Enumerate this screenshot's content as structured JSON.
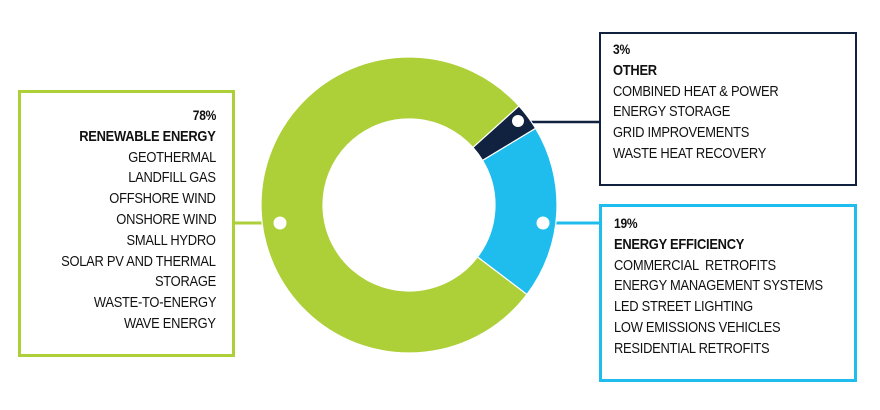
{
  "chart_data": {
    "type": "pie",
    "variant": "donut",
    "title": "",
    "categories": [
      "Renewable Energy",
      "Energy Efficiency",
      "Other"
    ],
    "values": [
      78,
      19,
      3
    ],
    "unit": "%",
    "colors": {
      "Renewable Energy": "#ADCF37",
      "Energy Efficiency": "#1FBCEE",
      "Other": "#10223F"
    },
    "segments": [
      {
        "label": "RENEWABLE ENERGY",
        "percent_label": "78%",
        "value": 78,
        "color": "#ADCF37",
        "items": [
          "GEOTHERMAL",
          "LANDFILL GAS",
          "OFFSHORE WIND",
          "ONSHORE WIND",
          "SMALL HYDRO",
          "SOLAR PV AND THERMAL",
          "STORAGE",
          "WASTE-TO-ENERGY",
          "WAVE ENERGY"
        ]
      },
      {
        "label": "ENERGY EFFICIENCY",
        "percent_label": "19%",
        "value": 19,
        "color": "#1FBCEE",
        "items": [
          "COMMERCIAL  RETROFITS",
          "ENERGY MANAGEMENT SYSTEMS",
          "LED STREET LIGHTING",
          "LOW EMISSIONS VEHICLES",
          "RESIDENTIAL RETROFITS"
        ]
      },
      {
        "label": "OTHER",
        "percent_label": "3%",
        "value": 3,
        "color": "#10223F",
        "items": [
          "COMBINED HEAT & POWER",
          "ENERGY STORAGE",
          "GRID IMPROVEMENTS",
          "WASTE HEAT RECOVERY"
        ]
      }
    ],
    "legend_position": "callout-boxes"
  },
  "renewable": {
    "pct": "78%",
    "title": "RENEWABLE ENERGY",
    "items": [
      "GEOTHERMAL",
      "LANDFILL GAS",
      "OFFSHORE WIND",
      "ONSHORE WIND",
      "SMALL HYDRO",
      "SOLAR PV AND THERMAL",
      "STORAGE",
      "WASTE-TO-ENERGY",
      "WAVE ENERGY"
    ]
  },
  "other": {
    "pct": "3%",
    "title": "OTHER",
    "items": [
      "COMBINED HEAT & POWER",
      "ENERGY STORAGE",
      "GRID IMPROVEMENTS",
      "WASTE HEAT RECOVERY"
    ]
  },
  "efficiency": {
    "pct": "19%",
    "title": "ENERGY EFFICIENCY",
    "items": [
      "COMMERCIAL  RETROFITS",
      "ENERGY MANAGEMENT SYSTEMS",
      "LED STREET LIGHTING",
      "LOW EMISSIONS VEHICLES",
      "RESIDENTIAL RETROFITS"
    ]
  }
}
